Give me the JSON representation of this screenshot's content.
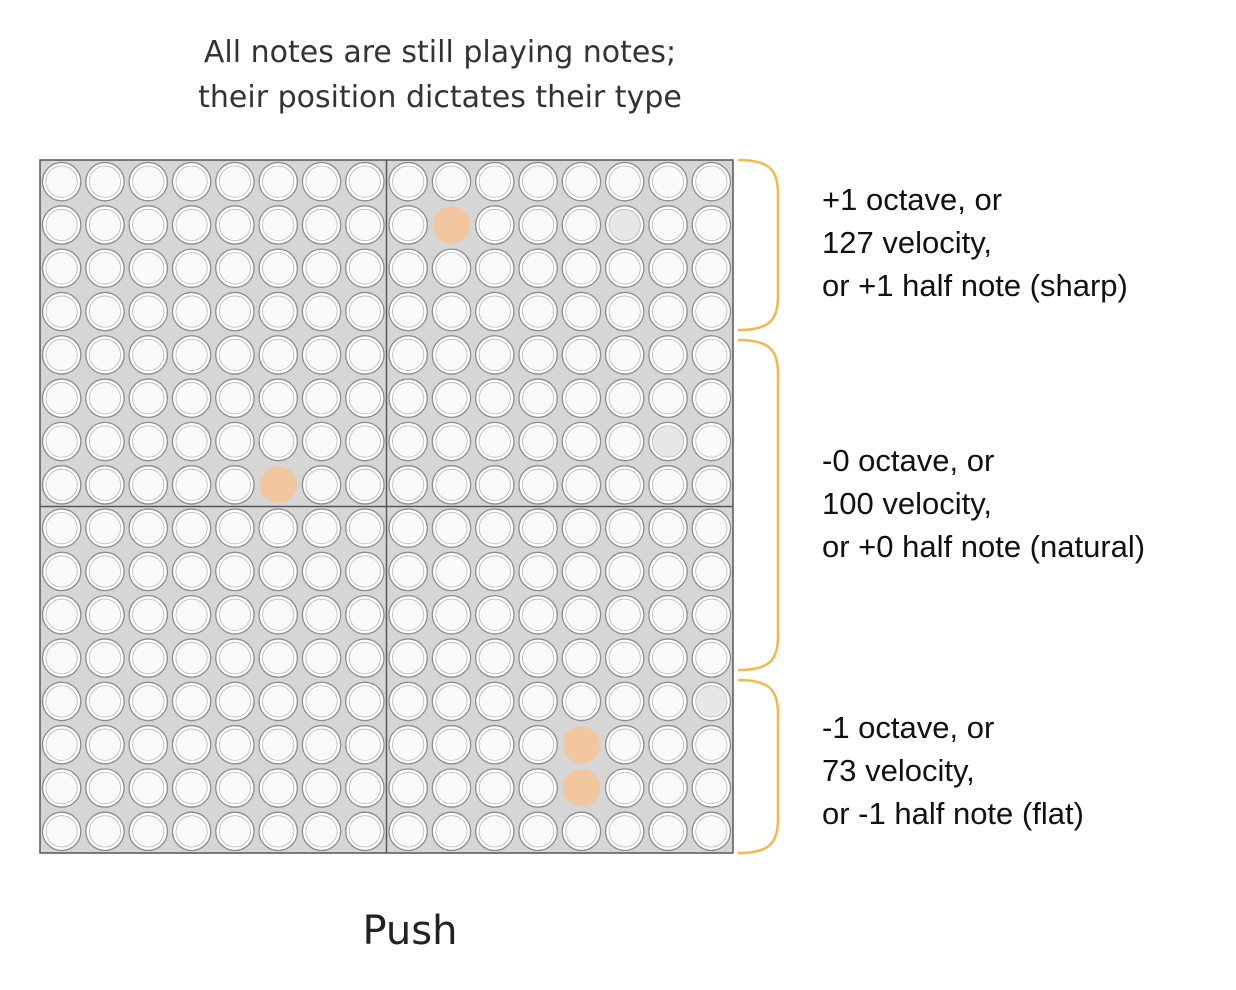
{
  "caption": {
    "line1": "All notes are still playing notes;",
    "line2": "their position dictates their type"
  },
  "regions": [
    {
      "line1": "+1 octave, or",
      "line2": "127 velocity,",
      "line3": "or +1 half note (sharp)"
    },
    {
      "line1": "-0 octave, or",
      "line2": "100 velocity,",
      "line3": "or +0 half note (natural)"
    },
    {
      "line1": "-1 octave, or",
      "line2": "73 velocity,",
      "line3": "or -1 half note (flat)"
    }
  ],
  "footer": {
    "label": "Push"
  },
  "grid": {
    "rows": 16,
    "cols": 16,
    "highlighted_pads": [
      {
        "row": 1,
        "col": 9
      },
      {
        "row": 7,
        "col": 5
      },
      {
        "row": 13,
        "col": 12
      },
      {
        "row": 14,
        "col": 12
      }
    ],
    "dimmed_pads": [
      {
        "row": 1,
        "col": 13
      },
      {
        "row": 6,
        "col": 14
      },
      {
        "row": 12,
        "col": 15
      }
    ]
  },
  "colors": {
    "pad_background": "#d6d6d6",
    "pad_fill": "#fafafa",
    "pad_stroke": "#8c8c8c",
    "highlight": "#f2c7a0",
    "dimmed": "#e7e7e7",
    "brace": "#f2b84b",
    "divider": "#555555"
  }
}
